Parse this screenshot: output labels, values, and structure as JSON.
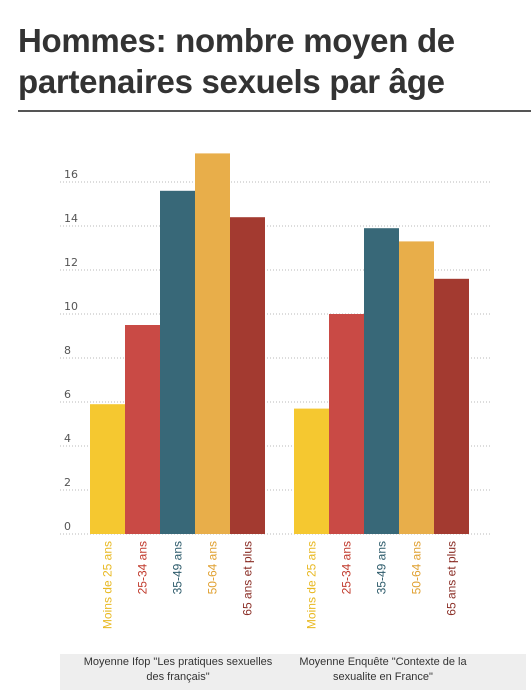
{
  "title": "Hommes: nombre moyen de partenaires sexuels par âge",
  "chart_data": {
    "type": "bar",
    "title": "Hommes: nombre moyen de partenaires sexuels par âge",
    "ylim": [
      0,
      18
    ],
    "yticks": [
      0,
      2,
      4,
      6,
      8,
      10,
      12,
      14,
      16
    ],
    "grid": true,
    "categories": [
      "Moins de 25 ans",
      "25-34 ans",
      "35-49 ans",
      "50-64 ans",
      "65 ans et plus"
    ],
    "colors": [
      "#f5c830",
      "#c94a45",
      "#386878",
      "#e8ae4a",
      "#a33a30"
    ],
    "label_colors": [
      "#e8b820",
      "#c0392b",
      "#2c5a6a",
      "#e0a030",
      "#8a2e26"
    ],
    "groups": [
      {
        "label": "Moyenne Ifop \"Les pratiques sexuelles des français\"",
        "values": [
          5.9,
          9.5,
          15.6,
          17.3,
          14.4
        ]
      },
      {
        "label": "Moyenne Enquête \"Contexte de la sexualite en France\"",
        "values": [
          5.7,
          10.0,
          13.9,
          13.3,
          11.6
        ]
      }
    ]
  }
}
